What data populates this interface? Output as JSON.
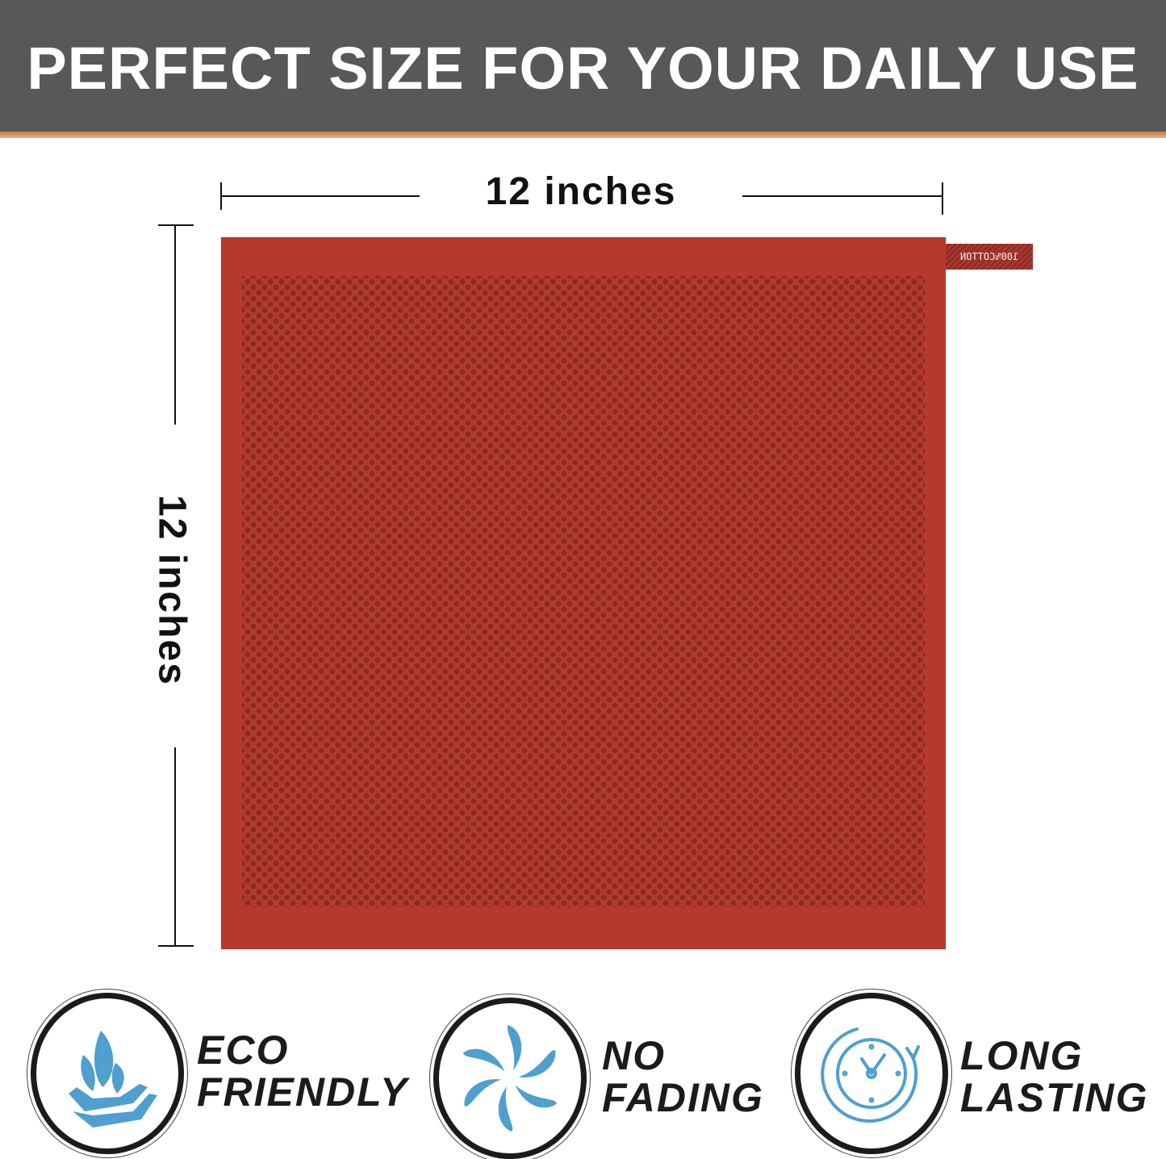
{
  "header": {
    "title": "PERFECT SIZE FOR YOUR DAILY USE",
    "bg_color": "#58585a",
    "accent_color": "#d98a4e"
  },
  "dimensions": {
    "width_label": "12 inches",
    "height_label": "12 inches"
  },
  "product": {
    "color": "#b5392d",
    "tag_text": "100%COTTON"
  },
  "features": [
    {
      "icon": "leaf-hand-icon",
      "line1": "ECO",
      "line2": "FRIENDLY"
    },
    {
      "icon": "pinwheel-icon",
      "line1": "NO",
      "line2": "FADING"
    },
    {
      "icon": "clock-icon",
      "line1": "LONG",
      "line2": "LASTING"
    }
  ],
  "icon_color": "#4f9fcf"
}
